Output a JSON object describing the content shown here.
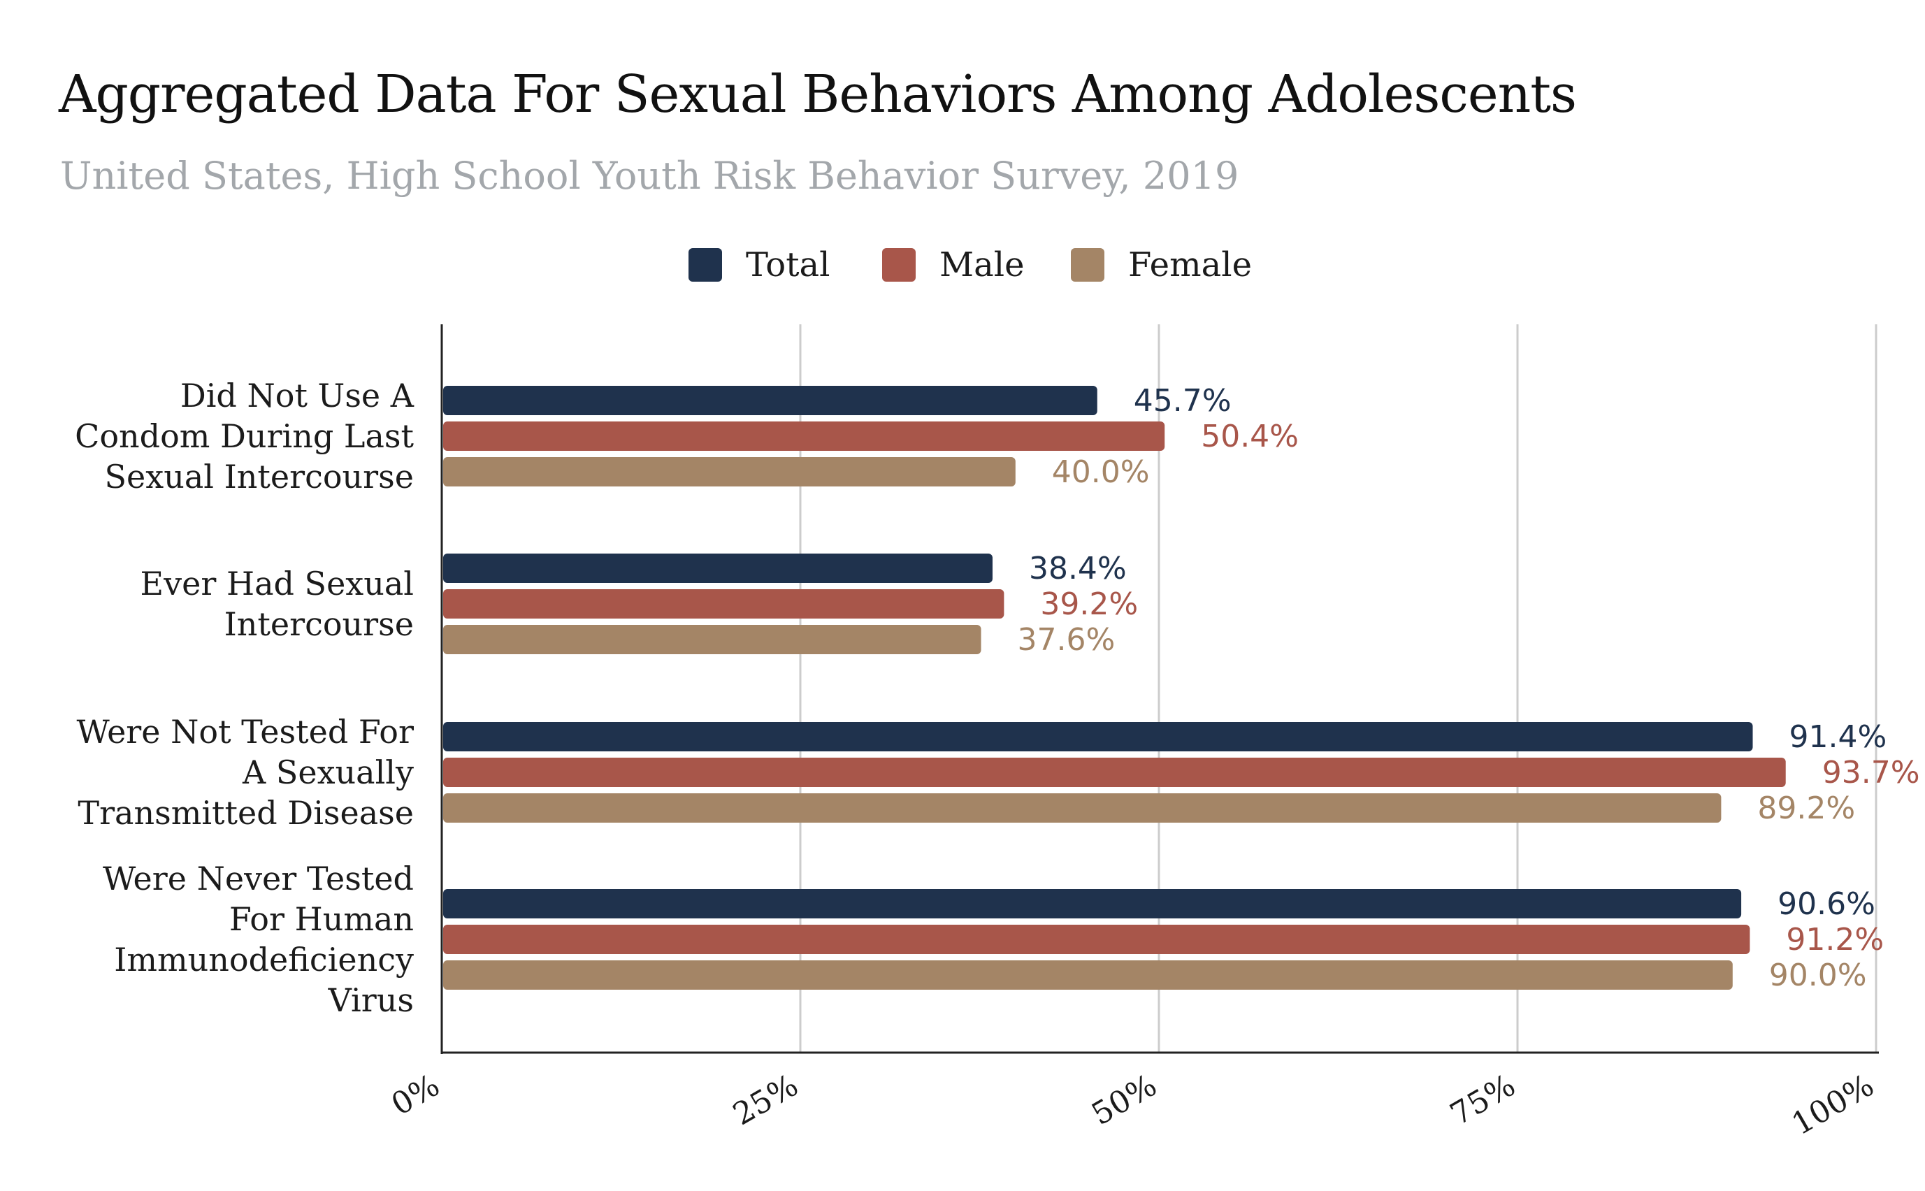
{
  "title": "Aggregated Data For Sexual Behaviors Among Adolescents",
  "subtitle": "United States, High School Youth Risk Behavior Survey, 2019",
  "chart_data": {
    "type": "bar",
    "orientation": "horizontal",
    "title": "Aggregated Data For Sexual Behaviors Among Adolescents",
    "subtitle": "United States, High School Youth Risk Behavior Survey, 2019",
    "categories": [
      "Did Not Use A Condom During Last Sexual Intercourse",
      "Ever Had Sexual Intercourse",
      "Were Not Tested For A Sexually Transmitted Disease",
      "Were Never Tested For Human Immunodeficiency Virus"
    ],
    "category_lines": [
      [
        "Did Not Use A",
        "Condom During Last",
        "Sexual Intercourse"
      ],
      [
        "Ever Had Sexual",
        "Intercourse"
      ],
      [
        "Were Not Tested For",
        "A Sexually",
        "Transmitted Disease"
      ],
      [
        "Were Never Tested",
        "For Human",
        "Immunodeficiency",
        "Virus"
      ]
    ],
    "series": [
      {
        "name": "Total",
        "color": "#1f324d",
        "values": [
          45.7,
          38.4,
          91.4,
          90.6
        ]
      },
      {
        "name": "Male",
        "color": "#a8564a",
        "values": [
          50.4,
          39.2,
          93.7,
          91.2
        ]
      },
      {
        "name": "Female",
        "color": "#a48566",
        "values": [
          40.0,
          37.6,
          89.2,
          90.0
        ]
      }
    ],
    "data_labels": [
      [
        "45.7%",
        "38.4%",
        "91.4%",
        "90.6%"
      ],
      [
        "50.4%",
        "39.2%",
        "93.7%",
        "91.2%"
      ],
      [
        "40.0%",
        "37.6%",
        "89.2%",
        "90.0%"
      ]
    ],
    "xlim": [
      0,
      100
    ],
    "xticks": [
      0,
      25,
      50,
      75,
      100
    ],
    "xtick_labels": [
      "0%",
      "25%",
      "50%",
      "75%",
      "100%"
    ],
    "grid": true,
    "legend_position": "top-center"
  }
}
